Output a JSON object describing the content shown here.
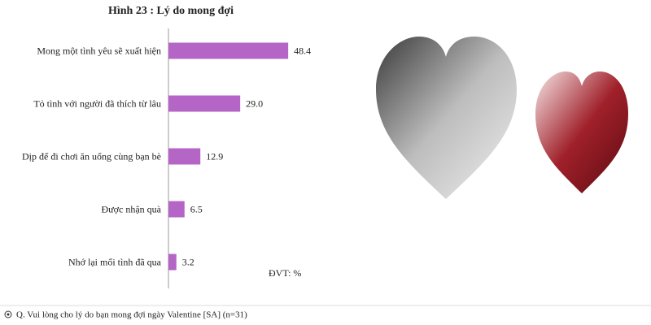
{
  "chart_data": {
    "type": "bar",
    "orientation": "horizontal",
    "title": "Hình 23 : Lý do mong đợi",
    "categories": [
      "Mong một tình yêu sẽ xuất hiện",
      "Tỏ tình với  người đã thích từ lâu",
      "Dịp để đi chơi ăn uống cùng bạn bè",
      "Được nhận quà",
      "Nhớ lại mối tình đã qua"
    ],
    "values": [
      48.4,
      29.0,
      12.9,
      6.5,
      3.2
    ],
    "value_labels": [
      "48.4",
      "29.0",
      "12.9",
      "6.5",
      "3.2"
    ],
    "color": "#b565c6",
    "xlim": [
      0,
      60
    ],
    "unit_note": "ĐVT: %",
    "footnote": "Q. Vui lòng cho lý do  bạn mong đợi ngày Valentine [SA] (n=31)"
  }
}
